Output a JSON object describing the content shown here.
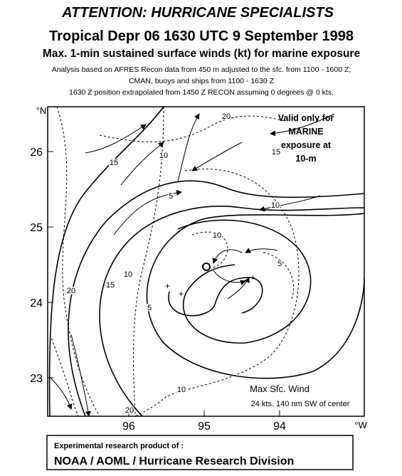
{
  "header": {
    "title": "ATTENTION: HURRICANE SPECIALISTS",
    "storm": "Tropical Depr 06 1630 UTC 9 September 1998",
    "subtitle": "Max. 1-min sustained surface winds (kt) for marine exposure",
    "notes": [
      "Analysis based on  AFRES Recon data from 450 m adjusted to the sfc. from 1100 - 1600 Z;",
      "CMAN, buoys and ships from 1100 - 1630 Z",
      "1630 Z position extrapolated from 1450 Z RECON assuming  0 degrees @ 0 kts."
    ]
  },
  "map": {
    "lat_ticks": [
      26,
      25,
      24,
      23
    ],
    "lon_ticks": [
      96,
      95,
      94
    ],
    "lat_unit": "°N",
    "lon_unit": "°W",
    "contour_labels": [
      "20",
      "15",
      "10",
      "15",
      "5",
      "10",
      "10",
      "5",
      "10",
      "15",
      "20",
      "5",
      "10",
      "20"
    ],
    "validity_note": [
      "Valid only for",
      "MARINE",
      "exposure at",
      "10-m"
    ],
    "max_wind": [
      "Max Sfc. Wind",
      "24 kts. 140 nm SW of center"
    ]
  },
  "footer": {
    "label": "Experimental research product of :",
    "org": "NOAA / AOML / Hurricane Research Division"
  }
}
